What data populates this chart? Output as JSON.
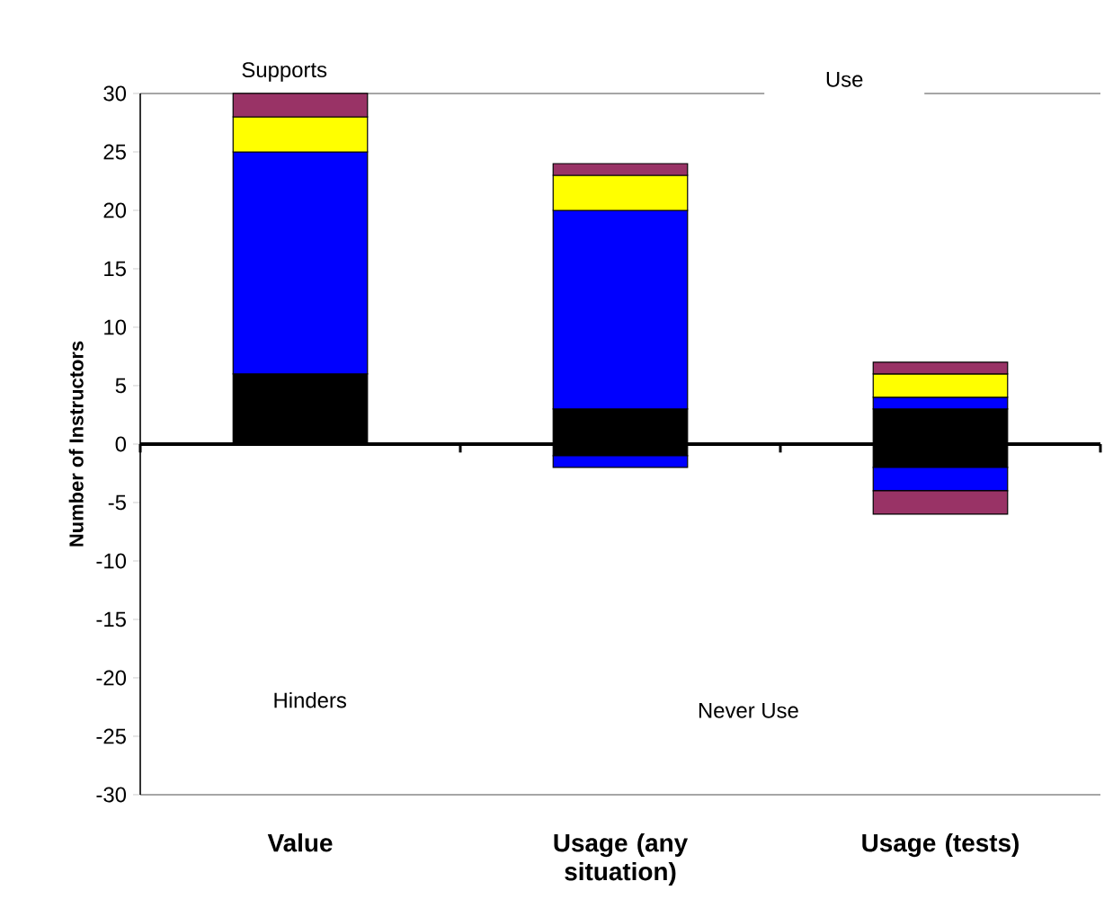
{
  "chart_data": {
    "type": "bar",
    "stacked": true,
    "categories": [
      "Value",
      "Usage (any situation)",
      "Usage (tests)"
    ],
    "ylabel": "Number of Instructors",
    "ylim": [
      -30,
      30
    ],
    "yticks": [
      -30,
      -25,
      -20,
      -15,
      -10,
      -5,
      0,
      5,
      10,
      15,
      20,
      25,
      30
    ],
    "annotations": [
      "Supports",
      "Use",
      "Hinders",
      "Never Use"
    ],
    "series": [
      {
        "color": "#000000",
        "values": [
          6,
          3,
          3
        ]
      },
      {
        "color": "#0000ff",
        "values": [
          19,
          17,
          1
        ]
      },
      {
        "color": "#ffff00",
        "values": [
          3,
          3,
          2
        ]
      },
      {
        "color": "#993366",
        "values": [
          2,
          1,
          1
        ]
      },
      {
        "color": "#000000",
        "values": [
          0,
          -1,
          -2
        ]
      },
      {
        "color": "#0000ff",
        "values": [
          0,
          -1,
          -2
        ]
      },
      {
        "color": "#993366",
        "values": [
          0,
          0,
          -2
        ]
      }
    ]
  }
}
